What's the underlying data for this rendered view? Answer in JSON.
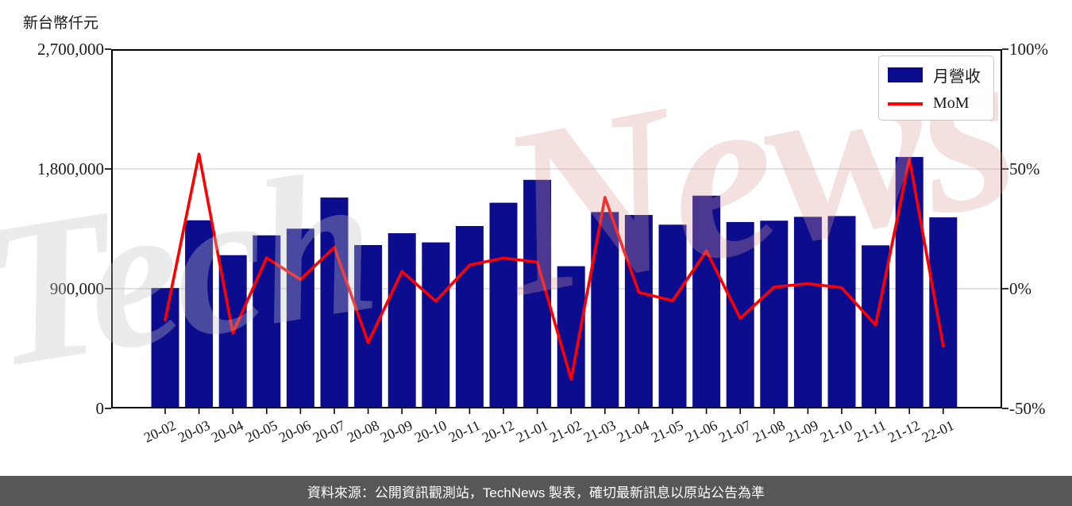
{
  "y_axis_title": "新台幣仟元",
  "legend": {
    "items": [
      {
        "label": "月營收",
        "swatch": "bar"
      },
      {
        "label": "MoM",
        "swatch": "line"
      }
    ]
  },
  "watermark": {
    "left": "Tech",
    "right": "News"
  },
  "footer": {
    "text": "資料來源：公開資訊觀測站，TechNews 製表，確切最新訊息以原站公告為準"
  },
  "colors": {
    "bar": "#0c0c8e",
    "line": "#ff0000",
    "grid": "#d8d8d8",
    "axis": "#000000",
    "footer_bg": "#575757",
    "watermark_gray": "#c4c4c4",
    "watermark_pink": "#e09a9a"
  },
  "chart_data": {
    "type": "bar",
    "title": "",
    "categories": [
      "20-02",
      "20-03",
      "20-04",
      "20-05",
      "20-06",
      "20-07",
      "20-08",
      "20-09",
      "20-10",
      "20-11",
      "20-12",
      "21-01",
      "21-02",
      "21-03",
      "21-04",
      "21-05",
      "21-06",
      "21-07",
      "21-08",
      "21-09",
      "21-10",
      "21-11",
      "21-12",
      "22-01"
    ],
    "series": [
      {
        "name": "月營收",
        "type": "bar",
        "axis": "left",
        "unit": "仟元",
        "values": [
          905000,
          1414000,
          1152000,
          1301000,
          1351000,
          1585000,
          1228000,
          1317000,
          1248000,
          1371000,
          1546000,
          1718000,
          1069000,
          1476000,
          1454000,
          1381000,
          1599000,
          1401000,
          1411000,
          1440000,
          1446000,
          1226000,
          1890000,
          1436000
        ]
      },
      {
        "name": "MoM",
        "type": "line",
        "axis": "right",
        "unit": "%",
        "values": [
          -13.0,
          56.2,
          -18.5,
          12.9,
          3.8,
          17.3,
          -22.5,
          7.2,
          -5.2,
          9.9,
          12.8,
          11.1,
          -37.8,
          38.1,
          -1.5,
          -5.0,
          15.8,
          -12.4,
          0.7,
          2.1,
          0.4,
          -15.2,
          54.2,
          -24.0
        ]
      }
    ],
    "left_axis": {
      "label": "新台幣仟元",
      "range": [
        0,
        2700000
      ],
      "ticks": [
        {
          "value": 2700000,
          "label": "2,700,000"
        },
        {
          "value": 1800000,
          "label": "1,800,000"
        },
        {
          "value": 900000,
          "label": "900,000"
        },
        {
          "value": 0,
          "label": "0"
        }
      ]
    },
    "right_axis": {
      "label": "",
      "range": [
        -50,
        100
      ],
      "ticks": [
        {
          "value": 100,
          "label": "100%"
        },
        {
          "value": 50,
          "label": "50%"
        },
        {
          "value": 0,
          "label": "0%"
        },
        {
          "value": -50,
          "label": "-50%"
        }
      ]
    },
    "gridlines": [
      1800000,
      900000
    ],
    "grid": "horizontal",
    "legend_position": "top-right"
  }
}
